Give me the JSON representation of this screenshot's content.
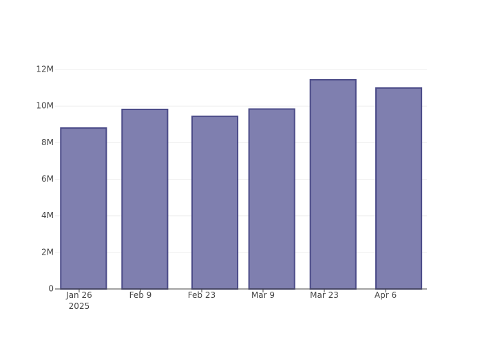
{
  "chart_data": {
    "type": "bar",
    "x": [
      "2025-01-27",
      "2025-02-10",
      "2025-02-26",
      "2025-03-11",
      "2025-03-25",
      "2025-04-09"
    ],
    "values": [
      8800000,
      9820000,
      9440000,
      9840000,
      11440000,
      10990000
    ],
    "color": "#7f7faf",
    "edge_color": "#4b4b88",
    "xlim": [
      "2025-01-20 12:00",
      "2025-04-15 10:30"
    ],
    "xticks": [
      {
        "value": "2025-01-26",
        "label": "Jan 26\n2025"
      },
      {
        "value": "2025-02-09",
        "label": "Feb 9"
      },
      {
        "value": "2025-02-23",
        "label": "Feb 23"
      },
      {
        "value": "2025-03-09",
        "label": "Mar 9"
      },
      {
        "value": "2025-03-23",
        "label": "Mar 23"
      },
      {
        "value": "2025-04-06",
        "label": "Apr 6"
      }
    ],
    "ylim": [
      0,
      12040000
    ],
    "yticks": [
      0,
      {
        "value": 2000000,
        "label": "2M"
      },
      {
        "value": 4000000,
        "label": "4M"
      },
      {
        "value": 6000000,
        "label": "6M"
      },
      {
        "value": 8000000,
        "label": "8M"
      },
      {
        "value": 10000000,
        "label": "10M"
      },
      {
        "value": 12000000,
        "label": "12M"
      }
    ],
    "grid": true
  }
}
